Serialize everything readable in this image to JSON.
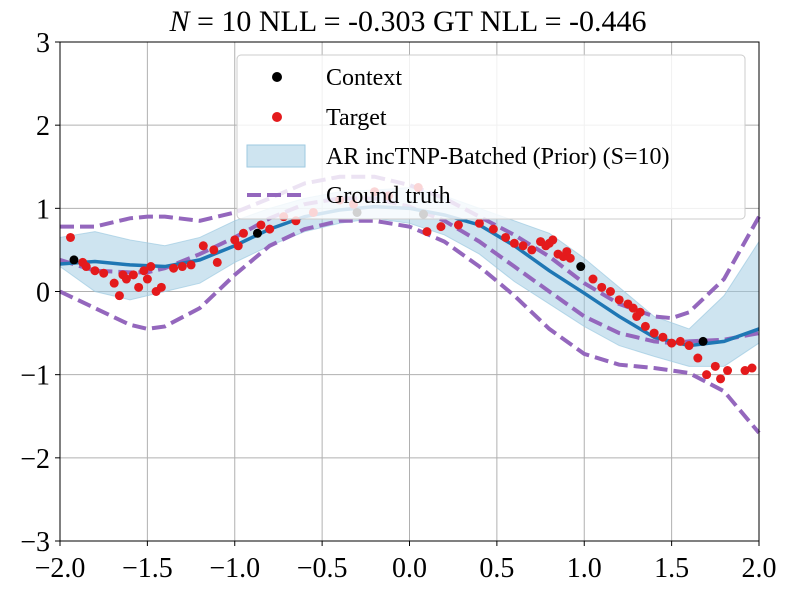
{
  "chart_data": {
    "type": "line",
    "title": {
      "n_symbol": "N",
      "text": " = 10 NLL = -0.303 GT NLL = -0.446"
    },
    "xlabel": "",
    "ylabel": "",
    "xlim": [
      -2.0,
      2.0
    ],
    "ylim": [
      -3,
      3
    ],
    "x_ticks": [
      -2.0,
      -1.5,
      -1.0,
      -0.5,
      0.0,
      0.5,
      1.0,
      1.5,
      2.0
    ],
    "x_tick_labels": [
      "−2.0",
      "−1.5",
      "−1.0",
      "−0.5",
      "0.0",
      "0.5",
      "1.0",
      "1.5",
      "2.0"
    ],
    "y_ticks": [
      -3,
      -2,
      -1,
      0,
      1,
      2,
      3
    ],
    "y_tick_labels": [
      "−3",
      "−2",
      "−1",
      "0",
      "1",
      "2",
      "3"
    ],
    "grid": true,
    "legend_position": "top-right",
    "colors": {
      "context": "#000000",
      "target": "#e41a1c",
      "band": "#9ecae1",
      "mean": "#1f77b4",
      "truth": "#9467bd"
    },
    "series": [
      {
        "name": "Context",
        "kind": "scatter",
        "x": [
          -1.92,
          -0.87,
          -0.3,
          0.08,
          0.98,
          1.68
        ],
        "y": [
          0.38,
          0.7,
          0.95,
          0.93,
          0.3,
          -0.6
        ]
      },
      {
        "name": "Target",
        "kind": "scatter",
        "x": [
          -1.94,
          -1.87,
          -1.85,
          -1.8,
          -1.75,
          -1.69,
          -1.66,
          -1.64,
          -1.62,
          -1.58,
          -1.55,
          -1.52,
          -1.5,
          -1.48,
          -1.45,
          -1.42,
          -1.35,
          -1.3,
          -1.25,
          -1.18,
          -1.12,
          -1.1,
          -1.0,
          -0.98,
          -0.95,
          -0.85,
          -0.8,
          -0.72,
          -0.65,
          -0.55,
          -0.4,
          -0.32,
          -0.2,
          -0.12,
          0.05,
          0.1,
          0.18,
          0.28,
          0.4,
          0.48,
          0.55,
          0.6,
          0.65,
          0.7,
          0.75,
          0.78,
          0.8,
          0.82,
          0.85,
          0.88,
          0.9,
          0.92,
          1.05,
          1.1,
          1.15,
          1.2,
          1.25,
          1.28,
          1.3,
          1.32,
          1.35,
          1.4,
          1.45,
          1.5,
          1.55,
          1.6,
          1.65,
          1.7,
          1.75,
          1.78,
          1.82,
          1.92,
          1.96
        ],
        "y": [
          0.65,
          0.35,
          0.3,
          0.25,
          0.22,
          0.1,
          -0.05,
          0.2,
          0.15,
          0.2,
          0.05,
          0.25,
          0.15,
          0.3,
          0.0,
          0.05,
          0.28,
          0.3,
          0.32,
          0.55,
          0.5,
          0.35,
          0.62,
          0.55,
          0.7,
          0.8,
          0.75,
          0.9,
          0.85,
          0.95,
          1.1,
          1.05,
          1.2,
          1.15,
          1.25,
          0.72,
          0.78,
          0.8,
          0.82,
          0.75,
          0.65,
          0.58,
          0.55,
          0.5,
          0.6,
          0.55,
          0.58,
          0.62,
          0.45,
          0.42,
          0.48,
          0.4,
          0.15,
          0.05,
          0.0,
          -0.1,
          -0.15,
          -0.2,
          -0.3,
          -0.25,
          -0.42,
          -0.5,
          -0.55,
          -0.62,
          -0.6,
          -0.65,
          -0.8,
          -1.0,
          -0.9,
          -1.05,
          -0.95,
          -0.95,
          -0.92
        ]
      },
      {
        "name": "AR incTNP-Batched (Prior) (S=10)",
        "kind": "band",
        "x": [
          -2.0,
          -1.8,
          -1.6,
          -1.4,
          -1.2,
          -1.0,
          -0.8,
          -0.6,
          -0.4,
          -0.2,
          0.0,
          0.2,
          0.4,
          0.6,
          0.8,
          1.0,
          1.2,
          1.4,
          1.6,
          1.8,
          2.0
        ],
        "upper": [
          0.65,
          0.72,
          0.62,
          0.55,
          0.65,
          0.85,
          1.0,
          1.12,
          1.2,
          1.22,
          1.25,
          1.15,
          1.0,
          0.85,
          0.7,
          0.4,
          0.05,
          -0.3,
          -0.45,
          -0.05,
          0.6
        ],
        "lower": [
          0.3,
          0.0,
          -0.1,
          0.0,
          0.1,
          0.35,
          0.55,
          0.72,
          0.82,
          0.88,
          0.82,
          0.68,
          0.45,
          0.12,
          -0.15,
          -0.42,
          -0.65,
          -0.78,
          -0.9,
          -0.9,
          -0.62
        ]
      },
      {
        "name": "mean",
        "kind": "line",
        "x": [
          -2.0,
          -1.8,
          -1.6,
          -1.4,
          -1.2,
          -1.0,
          -0.8,
          -0.6,
          -0.4,
          -0.2,
          0.0,
          0.2,
          0.4,
          0.6,
          0.8,
          1.0,
          1.2,
          1.4,
          1.6,
          1.8,
          2.0
        ],
        "y": [
          0.33,
          0.36,
          0.32,
          0.3,
          0.38,
          0.55,
          0.75,
          0.9,
          0.98,
          1.02,
          1.0,
          0.92,
          0.8,
          0.55,
          0.25,
          -0.02,
          -0.3,
          -0.55,
          -0.65,
          -0.6,
          -0.45
        ]
      },
      {
        "name": "Ground truth",
        "kind": "dashed-band",
        "x": [
          -2.0,
          -1.8,
          -1.6,
          -1.5,
          -1.4,
          -1.2,
          -1.0,
          -0.8,
          -0.6,
          -0.4,
          -0.2,
          0.0,
          0.2,
          0.4,
          0.6,
          0.8,
          1.0,
          1.2,
          1.4,
          1.5,
          1.6,
          1.8,
          2.0
        ],
        "mean": [
          0.38,
          0.25,
          0.23,
          0.23,
          0.28,
          0.45,
          0.65,
          0.88,
          1.05,
          1.12,
          1.12,
          1.02,
          0.85,
          0.6,
          0.3,
          0.0,
          -0.3,
          -0.5,
          -0.6,
          -0.62,
          -0.6,
          -0.58,
          -0.5
        ],
        "upper": [
          0.78,
          0.78,
          0.88,
          0.9,
          0.9,
          0.85,
          0.95,
          1.12,
          1.3,
          1.38,
          1.38,
          1.28,
          1.12,
          0.9,
          0.68,
          0.42,
          0.1,
          -0.15,
          -0.3,
          -0.32,
          -0.25,
          0.15,
          0.9
        ],
        "lower": [
          0.0,
          -0.2,
          -0.4,
          -0.45,
          -0.42,
          -0.2,
          0.2,
          0.55,
          0.75,
          0.85,
          0.85,
          0.78,
          0.6,
          0.3,
          -0.05,
          -0.45,
          -0.75,
          -0.88,
          -0.92,
          -0.95,
          -0.98,
          -1.2,
          -1.7
        ]
      }
    ]
  }
}
